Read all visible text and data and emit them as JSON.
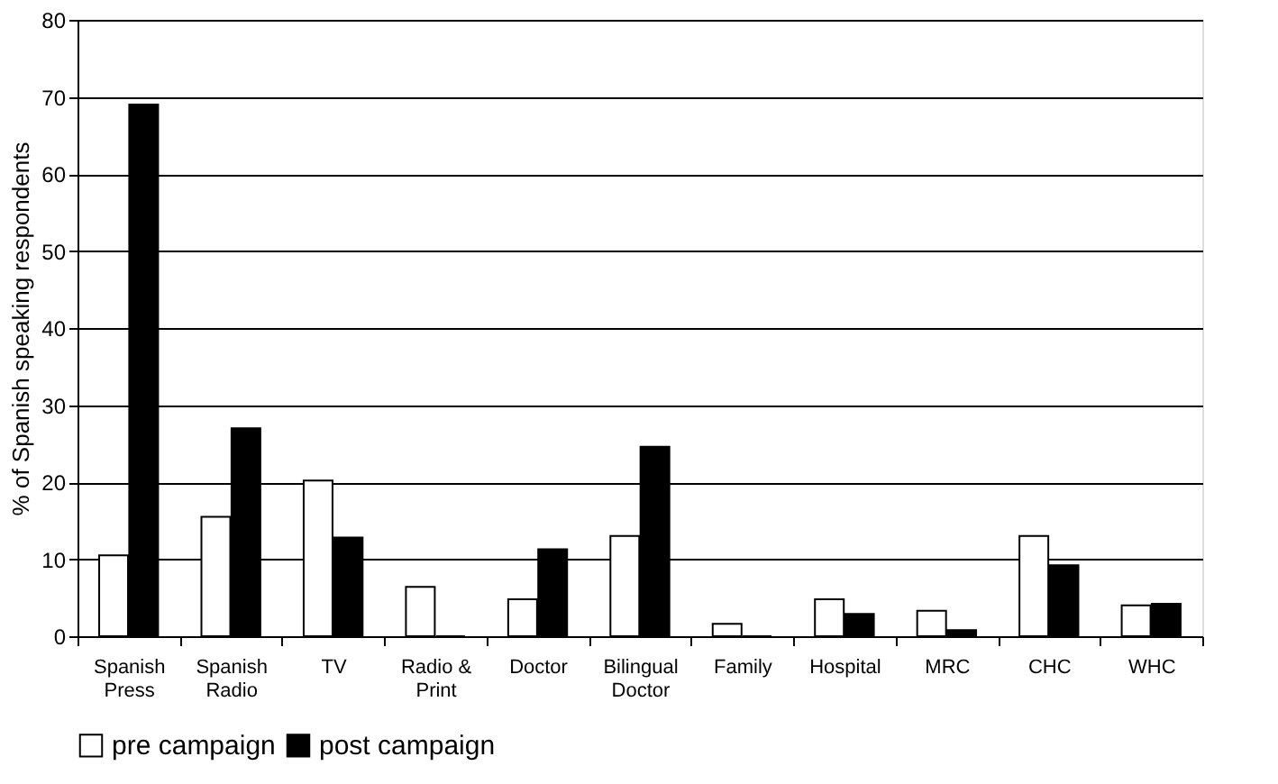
{
  "chart_data": {
    "type": "bar",
    "ylabel": "% of Spanish speaking respondents",
    "categories": [
      "Spanish Press",
      "Spanish Radio",
      "TV",
      "Radio & Print",
      "Doctor",
      "Bilingual Doctor",
      "Family",
      "Hospital",
      "MRC",
      "CHC",
      "WHC"
    ],
    "series": [
      {
        "name": "pre campaign",
        "color": "#ffffff",
        "values": [
          10.5,
          15.5,
          20.2,
          6.4,
          4.8,
          13,
          1.6,
          4.8,
          3.3,
          13,
          4
        ]
      },
      {
        "name": "post campaign",
        "color": "#000000",
        "values": [
          69,
          27,
          12.8,
          0,
          11.3,
          24.6,
          0,
          2.9,
          0.8,
          9.2,
          4.2
        ]
      }
    ],
    "ylim": [
      0,
      80
    ],
    "yticks": [
      0,
      10,
      20,
      30,
      40,
      50,
      60,
      70,
      80
    ],
    "grid": "y",
    "legend": "bottom"
  }
}
